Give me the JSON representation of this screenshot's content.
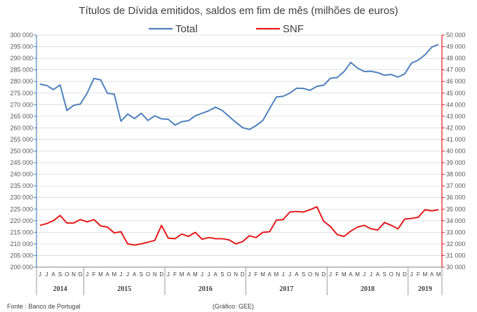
{
  "chart_data": {
    "type": "line",
    "title": "Títulos de Dívida emitidos, saldos em fim de mês  (milhões de euros)",
    "source": "Fonte : Banco de Portugal",
    "credit": "(Gráfico: GEE)",
    "legend": {
      "position": "top",
      "entries": [
        "Total",
        "SNF"
      ]
    },
    "month_labels": [
      "J",
      "J",
      "A",
      "S",
      "O",
      "N",
      "D",
      "J",
      "F",
      "M",
      "A",
      "M",
      "J",
      "J",
      "A",
      "S",
      "O",
      "N",
      "D",
      "J",
      "F",
      "M",
      "A",
      "M",
      "J",
      "J",
      "A",
      "S",
      "O",
      "N",
      "D",
      "J",
      "F",
      "M",
      "A",
      "M",
      "J",
      "J",
      "A",
      "S",
      "O",
      "N",
      "D",
      "J",
      "F",
      "M",
      "A",
      "M",
      "J",
      "J",
      "A",
      "S",
      "O",
      "N",
      "D",
      "J",
      "F",
      "M",
      "A",
      "M"
    ],
    "years": [
      {
        "label": "2014",
        "start": 0,
        "count": 7
      },
      {
        "label": "2015",
        "start": 7,
        "count": 12
      },
      {
        "label": "2016",
        "start": 19,
        "count": 12
      },
      {
        "label": "2017",
        "start": 31,
        "count": 12
      },
      {
        "label": "2018",
        "start": 43,
        "count": 12
      },
      {
        "label": "2019",
        "start": 55,
        "count": 5
      }
    ],
    "y_left": {
      "min": 200000,
      "max": 300000,
      "step": 5000,
      "tick_labels": [
        "200 000",
        "205 000",
        "210 000",
        "215 000",
        "220 000",
        "225 000",
        "230 000",
        "235 000",
        "240 000",
        "245 000",
        "250 000",
        "255 000",
        "260 000",
        "265 000",
        "270 000",
        "275 000",
        "280 000",
        "285 000",
        "290 000",
        "295 000",
        "300 000"
      ]
    },
    "y_right": {
      "min": 30000,
      "max": 50000,
      "step": 1000,
      "tick_labels": [
        "30 000",
        "31 000",
        "32 000",
        "33 000",
        "34 000",
        "35 000",
        "36 000",
        "37 000",
        "38 000",
        "39 000",
        "40 000",
        "41 000",
        "42 000",
        "43 000",
        "44 000",
        "45 000",
        "46 000",
        "47 000",
        "48 000",
        "49 000",
        "50 000"
      ]
    },
    "series": [
      {
        "name": "Total",
        "axis": "left",
        "color": "#4F81BD",
        "values": [
          278800,
          278300,
          276500,
          278500,
          267500,
          269700,
          270300,
          275000,
          281300,
          280700,
          274900,
          274600,
          262900,
          266000,
          264000,
          266300,
          263200,
          265200,
          263900,
          263700,
          261200,
          262700,
          263100,
          265200,
          266300,
          267400,
          268900,
          267500,
          264900,
          262400,
          260100,
          259300,
          261000,
          263200,
          268300,
          273300,
          273600,
          275000,
          277100,
          277000,
          276200,
          277900,
          278400,
          281400,
          281700,
          284200,
          288200,
          285800,
          284300,
          284400,
          283800,
          282700,
          283000,
          281900,
          283300,
          287900,
          289200,
          291500,
          294800,
          296000
        ]
      },
      {
        "name": "SNF",
        "axis": "right",
        "color": "#E41A1C",
        "values": [
          33600,
          33750,
          34000,
          34450,
          33800,
          33800,
          34100,
          33900,
          34100,
          33550,
          33450,
          32950,
          33050,
          32000,
          31900,
          32000,
          32150,
          32300,
          33600,
          32500,
          32450,
          32850,
          32650,
          33000,
          32400,
          32550,
          32450,
          32450,
          32350,
          32000,
          32200,
          32700,
          32550,
          33000,
          33050,
          34050,
          34100,
          34750,
          34800,
          34750,
          34950,
          35200,
          33950,
          33500,
          32800,
          32650,
          33100,
          33450,
          33600,
          33300,
          33200,
          33850,
          33600,
          33300,
          34150,
          34200,
          34300,
          34950,
          34850,
          34950
        ]
      }
    ]
  }
}
